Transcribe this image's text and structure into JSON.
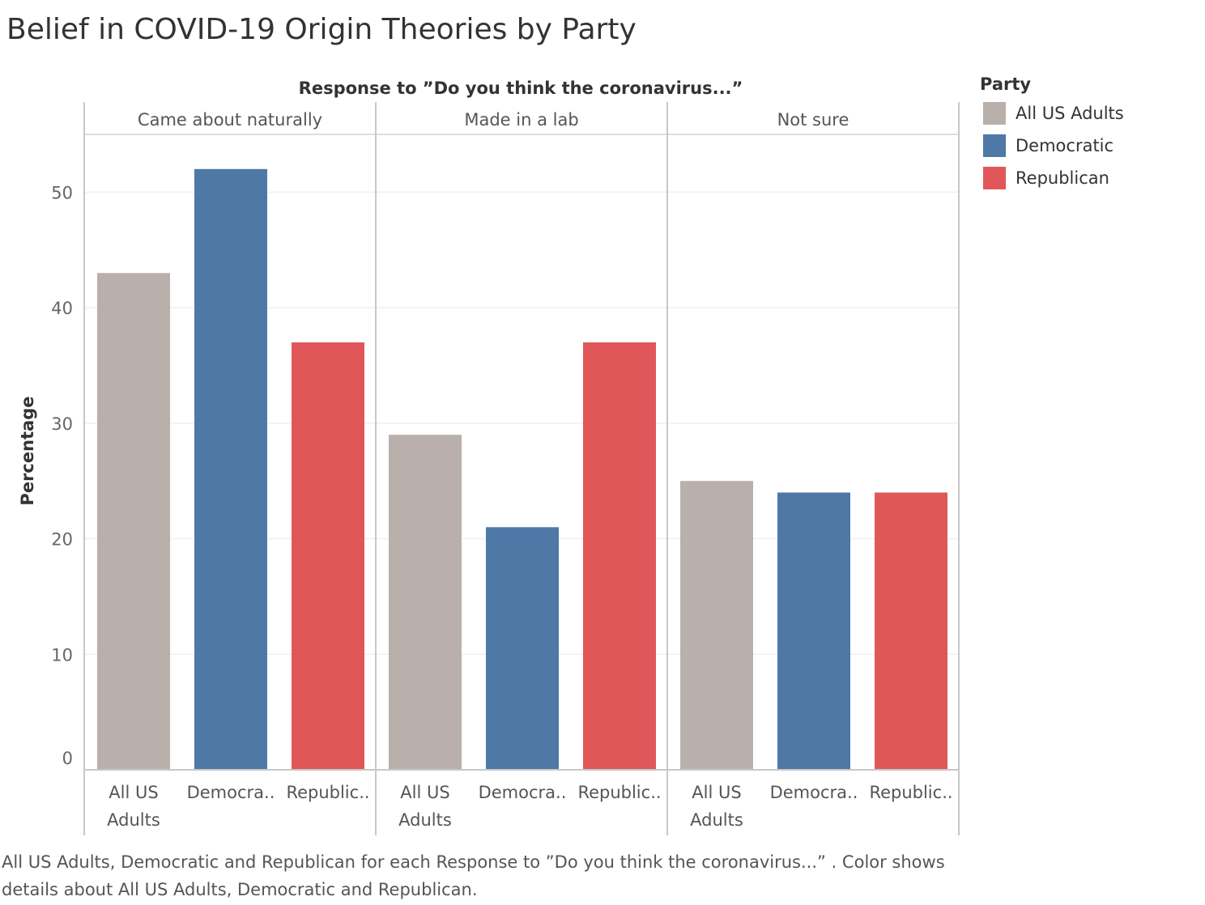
{
  "chart_data": {
    "type": "bar",
    "title": "Belief in COVID-19 Origin Theories by Party",
    "column_header": "Response to ”Do you think the coronavirus...”",
    "panels": [
      "Came about naturally",
      "Made in a lab",
      "Not sure"
    ],
    "categories": [
      "All US Adults",
      "Democra..",
      "Republic.."
    ],
    "category_lines": [
      [
        "All US",
        "Adults"
      ],
      [
        "Democra.."
      ],
      [
        "Republic.."
      ]
    ],
    "series": [
      {
        "name": "All US Adults",
        "values": [
          43,
          29,
          25
        ]
      },
      {
        "name": "Democratic",
        "values": [
          52,
          21,
          24
        ]
      },
      {
        "name": "Republican",
        "values": [
          37,
          37,
          24
        ]
      }
    ],
    "ylabel": "Percentage",
    "ylim": [
      0,
      55
    ],
    "yticks": [
      0,
      10,
      20,
      30,
      40,
      50
    ],
    "grid": true,
    "legend": {
      "title": "Party",
      "placement": "right",
      "items": [
        {
          "label": "All US Adults",
          "color": "#bab0ab"
        },
        {
          "label": "Democratic",
          "color": "#4e79a7"
        },
        {
          "label": "Republican",
          "color": "#e15759"
        }
      ]
    },
    "caption": "All US Adults, Democratic and Republican for each Response to ”Do you think the coronavirus...” .  Color shows details about All US Adults, Democratic and Republican."
  }
}
